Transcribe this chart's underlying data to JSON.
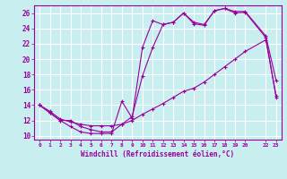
{
  "background_color": "#c8eef0",
  "grid_color": "#ffffff",
  "line_color": "#990099",
  "xlabel": "Windchill (Refroidissement éolien,°C)",
  "xlim": [
    -0.5,
    23.5
  ],
  "ylim": [
    9.5,
    27.0
  ],
  "yticks": [
    10,
    12,
    14,
    16,
    18,
    20,
    22,
    24,
    26
  ],
  "xticks": [
    0,
    1,
    2,
    3,
    4,
    5,
    6,
    7,
    8,
    9,
    10,
    11,
    12,
    13,
    14,
    15,
    16,
    17,
    18,
    19,
    20,
    22,
    23
  ],
  "line1_x": [
    0,
    1,
    2,
    3,
    4,
    5,
    6,
    7,
    8,
    9,
    10,
    11,
    12,
    13,
    14,
    15,
    16,
    17,
    18,
    19,
    20,
    22,
    23
  ],
  "line1_y": [
    14.0,
    13.0,
    12.0,
    11.2,
    10.5,
    10.3,
    10.3,
    10.3,
    14.5,
    12.3,
    21.5,
    25.0,
    24.5,
    24.8,
    26.0,
    24.8,
    24.5,
    26.3,
    26.6,
    26.2,
    26.2,
    23.0,
    17.2
  ],
  "line2_x": [
    0,
    1,
    2,
    3,
    4,
    5,
    6,
    7,
    8,
    9,
    10,
    11,
    12,
    13,
    14,
    15,
    16,
    17,
    18,
    19,
    20,
    22,
    23
  ],
  "line2_y": [
    14.0,
    13.0,
    12.0,
    12.0,
    11.2,
    10.8,
    10.5,
    10.5,
    11.5,
    12.5,
    17.8,
    21.5,
    24.5,
    24.8,
    26.0,
    24.6,
    24.4,
    26.3,
    26.6,
    26.0,
    26.1,
    22.8,
    15.0
  ],
  "line3_x": [
    0,
    1,
    2,
    3,
    4,
    5,
    6,
    7,
    8,
    9,
    10,
    11,
    12,
    13,
    14,
    15,
    16,
    17,
    18,
    19,
    20,
    22,
    23
  ],
  "line3_y": [
    14.0,
    13.2,
    12.2,
    11.8,
    11.5,
    11.3,
    11.3,
    11.3,
    11.5,
    12.0,
    12.8,
    13.5,
    14.2,
    15.0,
    15.8,
    16.2,
    17.0,
    18.0,
    19.0,
    20.0,
    21.0,
    22.5,
    15.2
  ]
}
